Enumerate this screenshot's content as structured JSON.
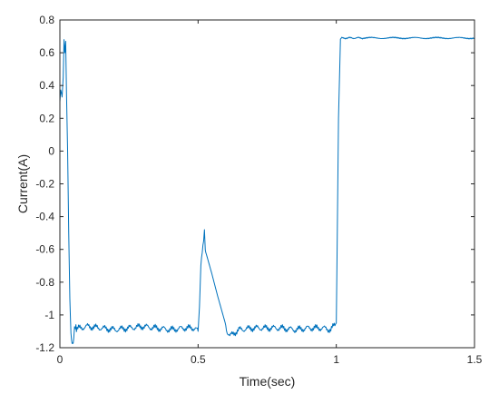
{
  "chart_data": {
    "type": "line",
    "title": "",
    "xlabel": "Time(sec)",
    "ylabel": "Current(A)",
    "xlim": [
      0,
      1.5
    ],
    "ylim": [
      -1.2,
      0.8
    ],
    "grid": false,
    "legend": "none",
    "x_ticks": [
      0,
      0.5,
      1,
      1.5
    ],
    "x_tick_labels": [
      "0",
      "0.5",
      "1",
      "1.5"
    ],
    "y_ticks": [
      0.8,
      0.6,
      0.4,
      0.2,
      0,
      -0.2,
      -0.4,
      -0.6,
      -0.8,
      -1,
      -1.2
    ],
    "y_tick_labels": [
      "0.8",
      "0.6",
      "0.4",
      "0.2",
      "0",
      "-0.2",
      "-0.4",
      "-0.6",
      "-0.8",
      "-1",
      "-1.2"
    ],
    "series": [
      {
        "color": "#0072bd",
        "x": [
          0,
          0.003,
          0.008,
          0.012,
          0.015,
          0.018,
          0.021,
          0.024,
          0.028,
          0.032,
          0.036,
          0.04,
          0.044,
          0.048,
          0.05,
          0.053,
          0.056,
          0.06,
          0.07,
          0.1,
          0.15,
          0.2,
          0.25,
          0.3,
          0.35,
          0.4,
          0.45,
          0.49,
          0.5,
          0.505,
          0.51,
          0.515,
          0.52,
          0.523,
          0.526,
          0.53,
          0.55,
          0.57,
          0.59,
          0.6,
          0.605,
          0.615,
          0.63,
          0.65,
          0.7,
          0.75,
          0.8,
          0.85,
          0.9,
          0.95,
          0.98,
          1.0,
          1.003,
          1.008,
          1.015,
          1.02,
          1.03,
          1.1,
          1.2,
          1.3,
          1.4,
          1.5
        ],
        "y": [
          0.3,
          0.38,
          0.33,
          0.45,
          0.68,
          0.6,
          0.67,
          0.35,
          0.0,
          -0.5,
          -0.9,
          -1.12,
          -1.17,
          -1.18,
          -1.13,
          -1.09,
          -1.07,
          -1.09,
          -1.08,
          -1.07,
          -1.08,
          -1.09,
          -1.08,
          -1.07,
          -1.08,
          -1.09,
          -1.08,
          -1.08,
          -1.1,
          -0.95,
          -0.7,
          -0.6,
          -0.55,
          -0.48,
          -0.6,
          -0.63,
          -0.75,
          -0.88,
          -1.0,
          -1.06,
          -1.1,
          -1.13,
          -1.11,
          -1.09,
          -1.08,
          -1.08,
          -1.08,
          -1.09,
          -1.08,
          -1.08,
          -1.09,
          -1.05,
          -0.6,
          0.2,
          0.68,
          0.69,
          0.69,
          0.69,
          0.69,
          0.69,
          0.69,
          0.69
        ]
      }
    ]
  }
}
